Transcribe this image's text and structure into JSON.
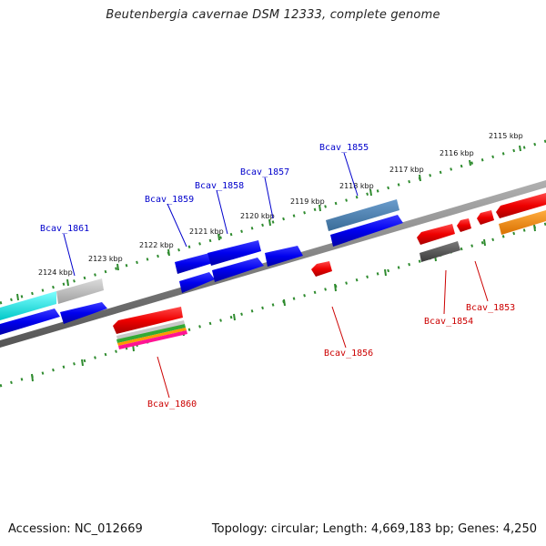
{
  "title": "Beutenbergia cavernae DSM 12333, complete genome",
  "footer": {
    "accession": "Accession: NC_012669",
    "summary": "Topology: circular; Length: 4,669,183 bp; Genes: 4,250"
  },
  "scale_labels": [
    "2115 kbp",
    "2116 kbp",
    "2117 kbp",
    "2118 kbp",
    "2119 kbp",
    "2120 kbp",
    "2121 kbp",
    "2122 kbp",
    "2123 kbp",
    "2124 kbp"
  ],
  "gene_labels": {
    "top": [
      "Bcav_1855",
      "Bcav_1857",
      "Bcav_1858",
      "Bcav_1859",
      "Bcav_1861"
    ],
    "bottom": [
      "Bcav_1853",
      "Bcav_1854",
      "Bcav_1856",
      "Bcav_1860"
    ]
  },
  "colors": {
    "label_top": "#0000cc",
    "label_bottom": "#cc0000",
    "ruler": "#2e8b2e",
    "backbone": "#7a7a7a",
    "gene_blue": "#0000ee",
    "gene_red": "#ee0000",
    "gene_steelblue": "#4682b4",
    "gene_cyan": "#00eeee",
    "gene_gray": "#bdbdbd",
    "gene_darkgray": "#555555",
    "gene_orange": "#ff8c00"
  }
}
